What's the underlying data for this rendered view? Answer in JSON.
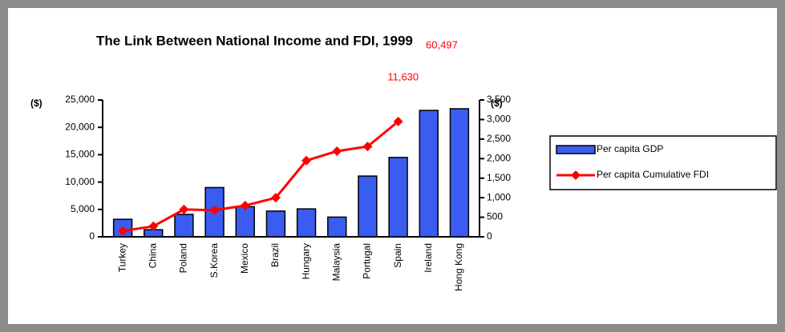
{
  "chart_data": {
    "type": "bar_line",
    "title": "The Link Between National Income and FDI, 1999",
    "y_label": "($)",
    "y2_label": "($)",
    "categories": [
      "Turkey",
      "China",
      "Poland",
      "S.Korea",
      "Mexico",
      "Brazil",
      "Hungary",
      "Malaysia",
      "Portugal",
      "Spain",
      "Ireland",
      "Hong Kong"
    ],
    "series": [
      {
        "name": "Per capita GDP",
        "color": "#3a5cf0",
        "type": "bar",
        "values": [
          3200,
          1300,
          4100,
          9000,
          5500,
          4700,
          5100,
          3600,
          11100,
          14500,
          23100,
          23400
        ]
      },
      {
        "name": "Per capita Cumulative FDI",
        "color": "#ff0000",
        "type": "line",
        "axis": "y2",
        "values": [
          150,
          270,
          700,
          680,
          800,
          1000,
          1950,
          2190,
          2310,
          2950,
          11630,
          60497
        ],
        "value_labels": [
          null,
          null,
          null,
          null,
          null,
          null,
          null,
          null,
          null,
          null,
          "11,630",
          "60,497"
        ]
      }
    ],
    "ylim": [
      0,
      25000
    ],
    "yticks": [
      0,
      {
        "value": 5000,
        "label": "5,000"
      },
      {
        "value": 10000,
        "label": "10,000"
      },
      {
        "value": 15000,
        "label": "15,000"
      },
      {
        "value": 20000,
        "label": "20,000"
      },
      {
        "value": 25000,
        "label": "25,000"
      }
    ],
    "y2lim": [
      0,
      3500
    ],
    "y2ticks": [
      0,
      500,
      {
        "value": 1000,
        "label": "1,000"
      },
      {
        "value": 1500,
        "label": "1,500"
      },
      {
        "value": 2000,
        "label": "2,000"
      },
      {
        "value": 2500,
        "label": "2,500"
      },
      {
        "value": 3000,
        "label": "3,000"
      },
      {
        "value": 3500,
        "label": "3,500"
      }
    ],
    "legend": "right"
  }
}
